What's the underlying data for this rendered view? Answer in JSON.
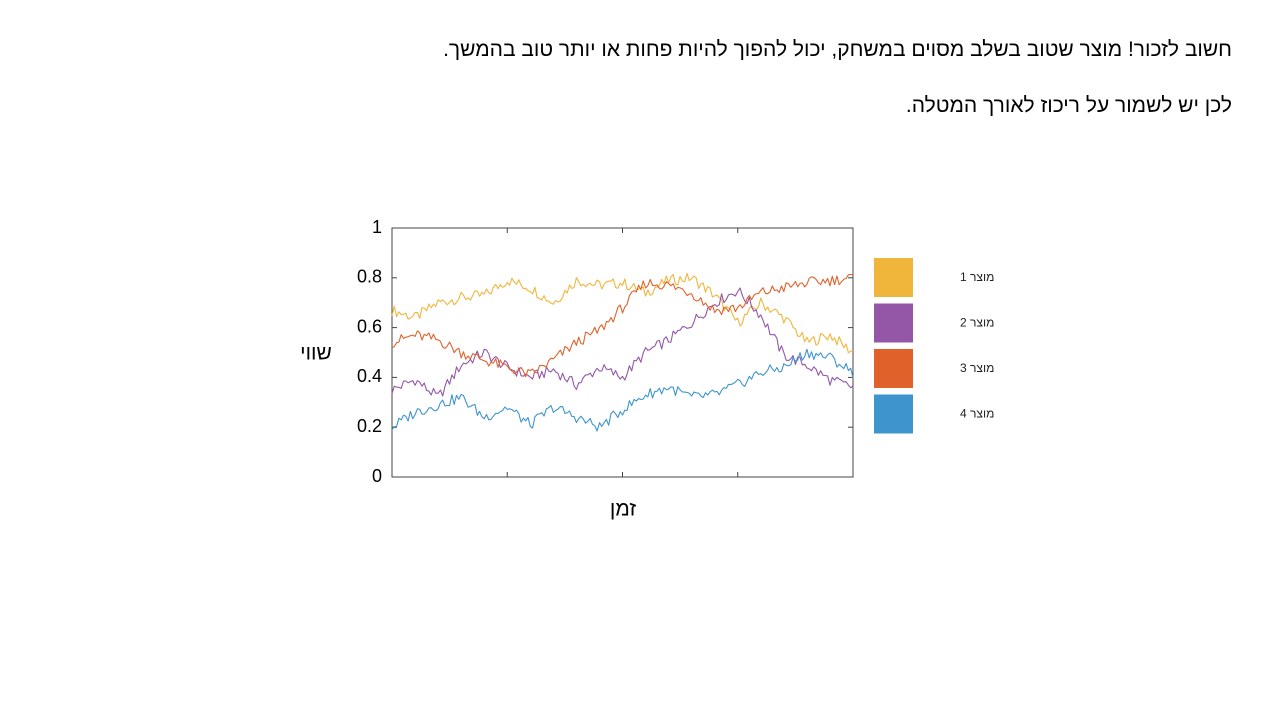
{
  "slide": {
    "line1": "חשוב לזכור! מוצר שטוב בשלב מסוים במשחק, יכול להפוך להיות פחות או יותר טוב בהמשך.",
    "line2": "לכן יש לשמור על ריכוז לאורך המטלה."
  },
  "chart_data": {
    "type": "line",
    "xlabel": "זמן",
    "ylabel": "שווי",
    "ylim": [
      0,
      1
    ],
    "yticks": [
      "0",
      "0.2",
      "0.4",
      "0.6",
      "0.8",
      "1"
    ],
    "x_tick_labels": "none",
    "legend_position": "right",
    "grid": false,
    "x": [
      0,
      1,
      2,
      3,
      4,
      5,
      6,
      7,
      8,
      9,
      10,
      11,
      12,
      13,
      14,
      15,
      16,
      17,
      18,
      19,
      20
    ],
    "series": [
      {
        "name": "מוצר 1",
        "color": "#F0B63C",
        "values": [
          0.67,
          0.64,
          0.7,
          0.72,
          0.73,
          0.79,
          0.76,
          0.7,
          0.79,
          0.77,
          0.78,
          0.74,
          0.79,
          0.8,
          0.73,
          0.62,
          0.7,
          0.64,
          0.54,
          0.57,
          0.5
        ]
      },
      {
        "name": "מוצר 2",
        "color": "#9457A7",
        "values": [
          0.35,
          0.39,
          0.32,
          0.45,
          0.5,
          0.44,
          0.4,
          0.43,
          0.37,
          0.44,
          0.4,
          0.5,
          0.55,
          0.62,
          0.7,
          0.75,
          0.65,
          0.49,
          0.45,
          0.39,
          0.36
        ]
      },
      {
        "name": "מוצר 3",
        "color": "#E0622A",
        "values": [
          0.54,
          0.57,
          0.55,
          0.5,
          0.47,
          0.44,
          0.41,
          0.47,
          0.54,
          0.59,
          0.68,
          0.78,
          0.77,
          0.74,
          0.67,
          0.68,
          0.74,
          0.76,
          0.78,
          0.79,
          0.8
        ]
      },
      {
        "name": "מוצר 4",
        "color": "#3E95CD",
        "values": [
          0.2,
          0.26,
          0.29,
          0.32,
          0.24,
          0.28,
          0.21,
          0.28,
          0.24,
          0.2,
          0.27,
          0.33,
          0.36,
          0.32,
          0.33,
          0.37,
          0.42,
          0.44,
          0.5,
          0.48,
          0.42
        ]
      }
    ]
  }
}
